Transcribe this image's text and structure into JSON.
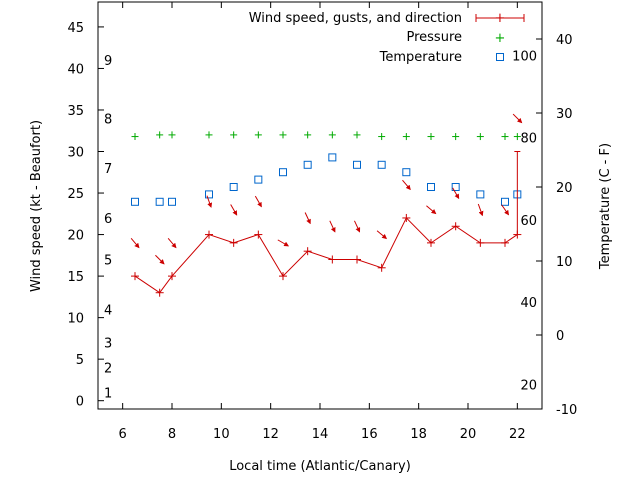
{
  "chart_data": {
    "type": "line",
    "xlabel": "Local time (Atlantic/Canary)",
    "ylabel_left": "Wind speed (kt - Beaufort)",
    "ylabel_right": "Temperature (C - F)",
    "xlim": [
      5,
      23
    ],
    "ylim_left": [
      -1,
      48
    ],
    "ylim_right": [
      -10,
      45
    ],
    "x_ticks": [
      6,
      8,
      10,
      12,
      14,
      16,
      18,
      20,
      22
    ],
    "y_ticks_left": [
      0,
      5,
      10,
      15,
      20,
      25,
      30,
      35,
      40,
      45
    ],
    "y_ticks_right": [
      -10,
      0,
      10,
      20,
      30,
      40
    ],
    "beaufort_labels": [
      {
        "label": "1",
        "value": 1
      },
      {
        "label": "2",
        "value": 4
      },
      {
        "label": "3",
        "value": 7
      },
      {
        "label": "4",
        "value": 11
      },
      {
        "label": "5",
        "value": 17
      },
      {
        "label": "6",
        "value": 22
      },
      {
        "label": "7",
        "value": 28
      },
      {
        "label": "8",
        "value": 34
      },
      {
        "label": "9",
        "value": 41
      }
    ],
    "fahrenheit_labels": [
      {
        "label": "20",
        "value": 20
      },
      {
        "label": "40",
        "value": 40
      },
      {
        "label": "60",
        "value": 60
      },
      {
        "label": "80",
        "value": 80
      },
      {
        "label": "100",
        "value": 100
      }
    ],
    "legend": [
      "Wind speed, gusts, and direction",
      "Pressure",
      "Temperature"
    ],
    "legend_position": "top-right",
    "colors": {
      "wind": "#cc0000",
      "pressure": "#00aa00",
      "temperature": "#0066cc",
      "axis": "#000000"
    },
    "series": [
      {
        "name": "Wind speed, gusts, and direction",
        "x": [
          6.5,
          7.5,
          8,
          9.5,
          10.5,
          11.5,
          12.5,
          13.5,
          14.5,
          15.5,
          16.5,
          17.5,
          18.5,
          19.5,
          20.5,
          21.5,
          22
        ],
        "y": [
          15,
          13,
          15,
          20,
          19,
          20,
          15,
          18,
          17,
          17,
          16,
          22,
          19,
          21,
          19,
          19,
          20
        ],
        "gust_x": 22,
        "gust_y": 30
      },
      {
        "name": "Pressure",
        "x": [
          6.5,
          7.5,
          8,
          9.5,
          10.5,
          11.5,
          12.5,
          13.5,
          14.5,
          15.5,
          16.5,
          17.5,
          18.5,
          19.5,
          20.5,
          21.5,
          22
        ],
        "y": [
          31.8,
          32,
          32,
          32,
          32,
          32,
          32,
          32,
          32,
          32,
          31.8,
          31.8,
          31.8,
          31.8,
          31.8,
          31.8,
          31.8
        ]
      },
      {
        "name": "Temperature",
        "x": [
          6.5,
          7.5,
          8,
          9.5,
          10.5,
          11.5,
          12.5,
          13.5,
          14.5,
          15.5,
          16.5,
          17.5,
          18.5,
          19.5,
          20.5,
          21.5,
          22
        ],
        "y": [
          18,
          18,
          18,
          19,
          20,
          21,
          22,
          23,
          24,
          23,
          23,
          22,
          20,
          20,
          19,
          18,
          19
        ]
      }
    ],
    "wind_arrows": {
      "x": [
        6.5,
        7.5,
        8,
        9.5,
        10.5,
        11.5,
        12.5,
        13.5,
        14.5,
        15.5,
        16.5,
        17.5,
        18.5,
        19.5,
        20.5,
        21.5,
        22
      ],
      "y": [
        19,
        17,
        19,
        24,
        23,
        24,
        19,
        22,
        21,
        21,
        20,
        26,
        23,
        25,
        23,
        23,
        34
      ],
      "direction_deg": [
        320,
        315,
        320,
        340,
        330,
        330,
        300,
        335,
        335,
        335,
        310,
        320,
        310,
        330,
        340,
        325,
        315
      ]
    }
  }
}
